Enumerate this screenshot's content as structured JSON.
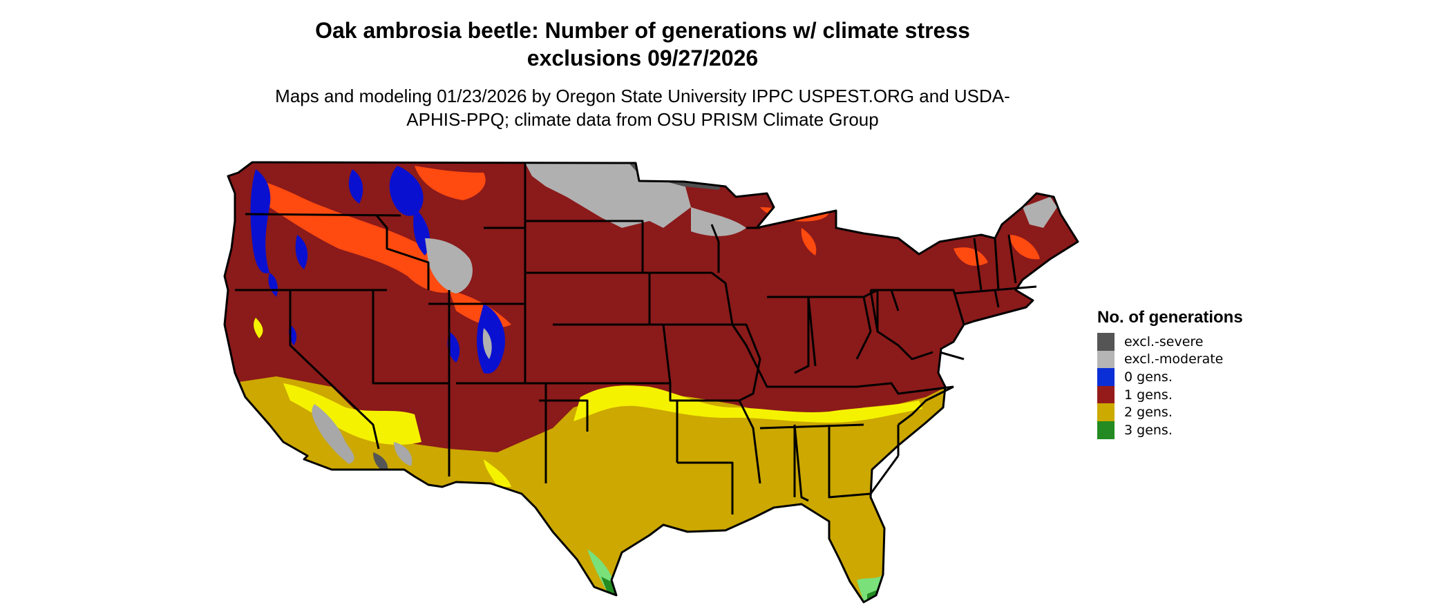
{
  "title": "Oak ambrosia beetle: Number of generations w/ climate stress exclusions 09/27/2026",
  "subtitle": "Maps and modeling 01/23/2026 by Oregon State University IPPC USPEST.ORG and USDA-APHIS-PPQ; climate data from OSU PRISM Climate Group",
  "legend": {
    "title": "No. of generations",
    "items": [
      {
        "label": "excl.-severe",
        "color": "#555555"
      },
      {
        "label": "excl.-moderate",
        "color": "#b5b5b5"
      },
      {
        "label": "0 gens.",
        "color": "#0a2fd6"
      },
      {
        "label": "1 gens.",
        "color": "#951b1b"
      },
      {
        "label": "2 gens.",
        "color": "#ccaa00"
      },
      {
        "label": "3 gens.",
        "color": "#238b22"
      }
    ]
  },
  "map": {
    "colors": {
      "one_gen": "#8b1a1a",
      "two_gen": "#cca800",
      "two_gen_light": "#f5f200",
      "zero_gen": "#0a10d0",
      "orange": "#ff4a10",
      "excl_moderate": "#b0b0b0",
      "excl_severe": "#4f4f4f",
      "three_gen": "#238b22",
      "three_gen_light": "#7ae07a",
      "border": "#000000"
    }
  }
}
